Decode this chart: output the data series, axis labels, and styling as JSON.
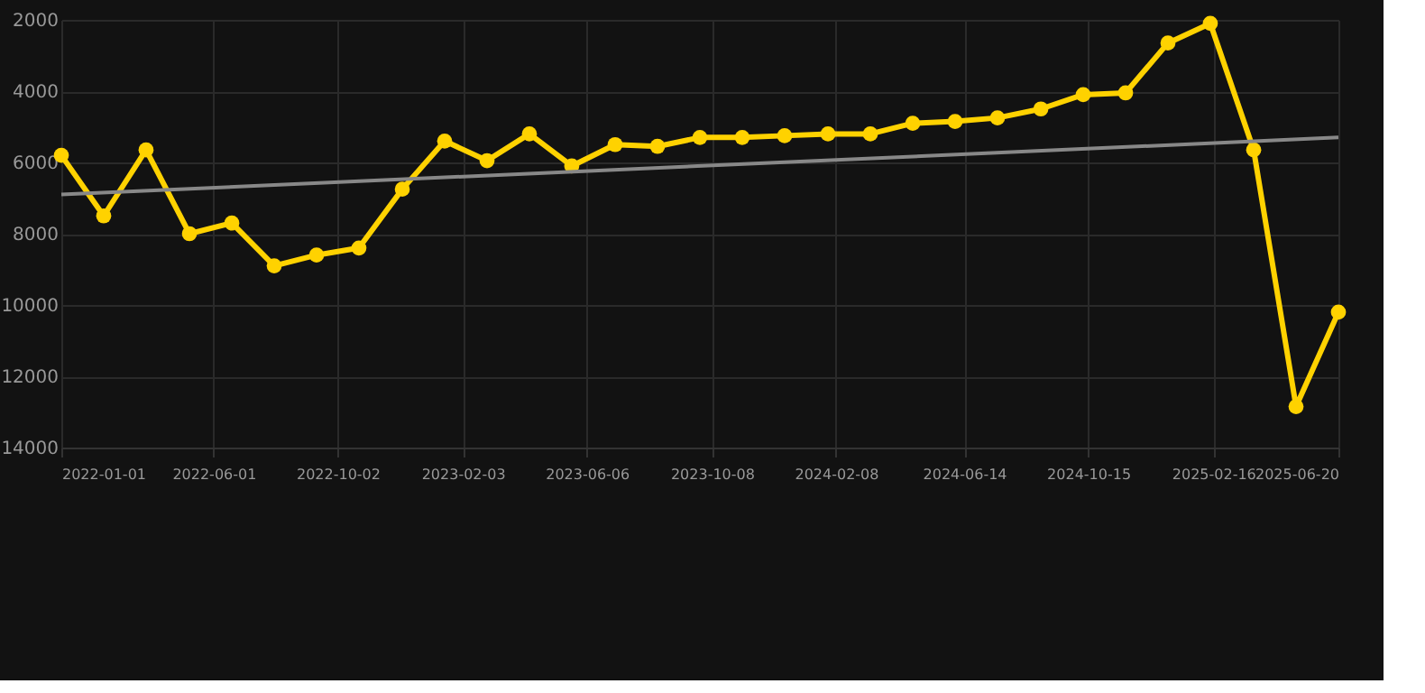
{
  "chart_data": {
    "type": "line",
    "marker": "circle",
    "grid": true,
    "x": [
      "2022-01-01",
      "2022-02-12",
      "2022-03-26",
      "2022-05-08",
      "2022-06-19",
      "2022-07-31",
      "2022-09-11",
      "2022-10-23",
      "2022-12-05",
      "2023-01-16",
      "2023-02-27",
      "2023-04-10",
      "2023-05-22",
      "2023-07-04",
      "2023-08-15",
      "2023-09-26",
      "2023-11-07",
      "2023-12-19",
      "2024-01-31",
      "2024-03-13",
      "2024-04-24",
      "2024-06-05",
      "2024-07-17",
      "2024-08-29",
      "2024-10-10",
      "2024-11-21",
      "2025-01-02",
      "2025-02-13",
      "2025-03-28",
      "2025-05-09",
      "2025-06-20"
    ],
    "series": [
      {
        "color": "#ffd200",
        "values": [
          5800,
          7500,
          5650,
          8000,
          7700,
          8900,
          8600,
          8400,
          6750,
          5400,
          5950,
          5200,
          6100,
          5500,
          5550,
          5300,
          5300,
          5250,
          5200,
          5200,
          4900,
          4850,
          4750,
          4500,
          4100,
          4050,
          2650,
          2100,
          5650,
          12850,
          10200
        ]
      },
      {
        "type": "line",
        "marker": "none",
        "color": "#888888",
        "x": [
          "2022-01-01",
          "2025-06-20"
        ],
        "values": [
          6900,
          5300
        ]
      }
    ],
    "ylim": [
      14000,
      2000
    ],
    "yticks": [
      2000,
      4000,
      6000,
      8000,
      10000,
      12000,
      14000
    ],
    "xlim": [
      "2022-01-01",
      "2025-06-20"
    ],
    "xticks": [
      "2022-01-01",
      "2022-06-01",
      "2022-10-02",
      "2023-02-03",
      "2023-06-06",
      "2023-10-08",
      "2024-02-08",
      "2024-06-14",
      "2024-10-15",
      "2025-02-16",
      "2025-06-20"
    ]
  }
}
